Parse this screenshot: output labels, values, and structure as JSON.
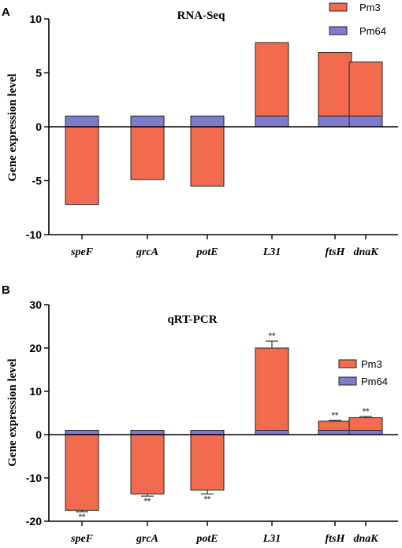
{
  "colors": {
    "pm3": "#F26B4F",
    "pm64": "#7E7CC8",
    "errorbar": "#333333",
    "sig": "#555555"
  },
  "chart_data": [
    {
      "panel": "A",
      "type": "bar",
      "stacked": true,
      "title": "RNA-Seq",
      "xlabel": "",
      "ylabel": "Gene expression level",
      "categories": [
        "speF",
        "grcA",
        "potE",
        "L31",
        "ftsH",
        "dnaK"
      ],
      "ylim": [
        -10,
        10
      ],
      "yticks": [
        -10,
        -5,
        0,
        5,
        10
      ],
      "grid": false,
      "legend_position": "top-right",
      "series": [
        {
          "name": "Pm3",
          "color": "#F26B4F",
          "values": [
            -7.2,
            -4.9,
            -5.5,
            7.8,
            6.9,
            6.0
          ]
        },
        {
          "name": "Pm64",
          "color": "#7E7CC8",
          "values": [
            1,
            1,
            1,
            1,
            1,
            1
          ]
        }
      ]
    },
    {
      "panel": "B",
      "type": "bar",
      "stacked": true,
      "title": "qRT-PCR",
      "xlabel": "",
      "ylabel": "Gene expression level",
      "categories": [
        "speF",
        "grcA",
        "potE",
        "L31",
        "ftsH",
        "dnaK"
      ],
      "ylim": [
        -20,
        30
      ],
      "yticks": [
        -20,
        -10,
        0,
        10,
        20,
        30
      ],
      "grid": false,
      "legend_position": "right",
      "series": [
        {
          "name": "Pm3",
          "color": "#F26B4F",
          "values": [
            -17.5,
            -13.7,
            -12.8,
            20.0,
            3.1,
            3.9
          ],
          "error": [
            0.3,
            0.5,
            0.9,
            1.6,
            0.2,
            0.3
          ]
        },
        {
          "name": "Pm64",
          "color": "#7E7CC8",
          "values": [
            1,
            1,
            1,
            1,
            1,
            1
          ]
        }
      ],
      "significance": [
        "**",
        "**",
        "**",
        "**",
        "**",
        "**"
      ]
    }
  ]
}
